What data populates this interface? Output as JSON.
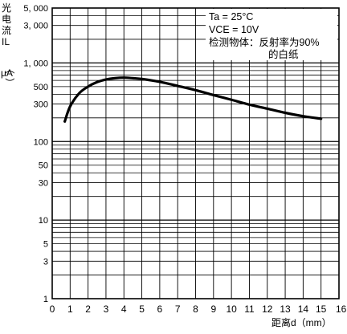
{
  "chart_data": {
    "type": "line",
    "title": "",
    "xlabel": "距离d（mm）",
    "ylabel": {
      "chars": [
        "光",
        "电",
        "流",
        "IL"
      ],
      "unit_open": "（",
      "unit": "μA",
      "unit_close": "）"
    },
    "x_scale": "linear",
    "y_scale": "log",
    "xlim": [
      0,
      16
    ],
    "ylim": [
      1,
      5000
    ],
    "x_ticks": [
      "0",
      "1",
      "2",
      "3",
      "4",
      "5",
      "6",
      "7",
      "8",
      "9",
      "10",
      "11",
      "12",
      "13",
      "14",
      "15",
      "16"
    ],
    "y_ticks": [
      {
        "value": 5000,
        "label": "5, 000"
      },
      {
        "value": 3000,
        "label": "3, 000"
      },
      {
        "value": 1000,
        "label": "1, 000"
      },
      {
        "value": 500,
        "label": "500"
      },
      {
        "value": 300,
        "label": "300"
      },
      {
        "value": 100,
        "label": "100"
      },
      {
        "value": 50,
        "label": "50"
      },
      {
        "value": 30,
        "label": "30"
      },
      {
        "value": 10,
        "label": "10"
      },
      {
        "value": 5,
        "label": "5"
      },
      {
        "value": 3,
        "label": "3"
      },
      {
        "value": 1,
        "label": "1"
      }
    ],
    "grid": true,
    "annotations": [
      "Ta = 25°C",
      "VCE = 10V",
      "检测物体：反射率为90%",
      "的白纸"
    ],
    "series": [
      {
        "x": [
          0.7,
          1.0,
          1.5,
          2.0,
          2.5,
          3.0,
          3.5,
          4.0,
          4.5,
          5.0,
          6.0,
          7.0,
          8.0,
          9.0,
          10.0,
          11.0,
          12.0,
          13.0,
          14.0,
          15.0
        ],
        "values": [
          180,
          280,
          410,
          500,
          570,
          615,
          640,
          650,
          640,
          625,
          575,
          510,
          450,
          390,
          340,
          295,
          262,
          232,
          210,
          195
        ]
      }
    ]
  }
}
